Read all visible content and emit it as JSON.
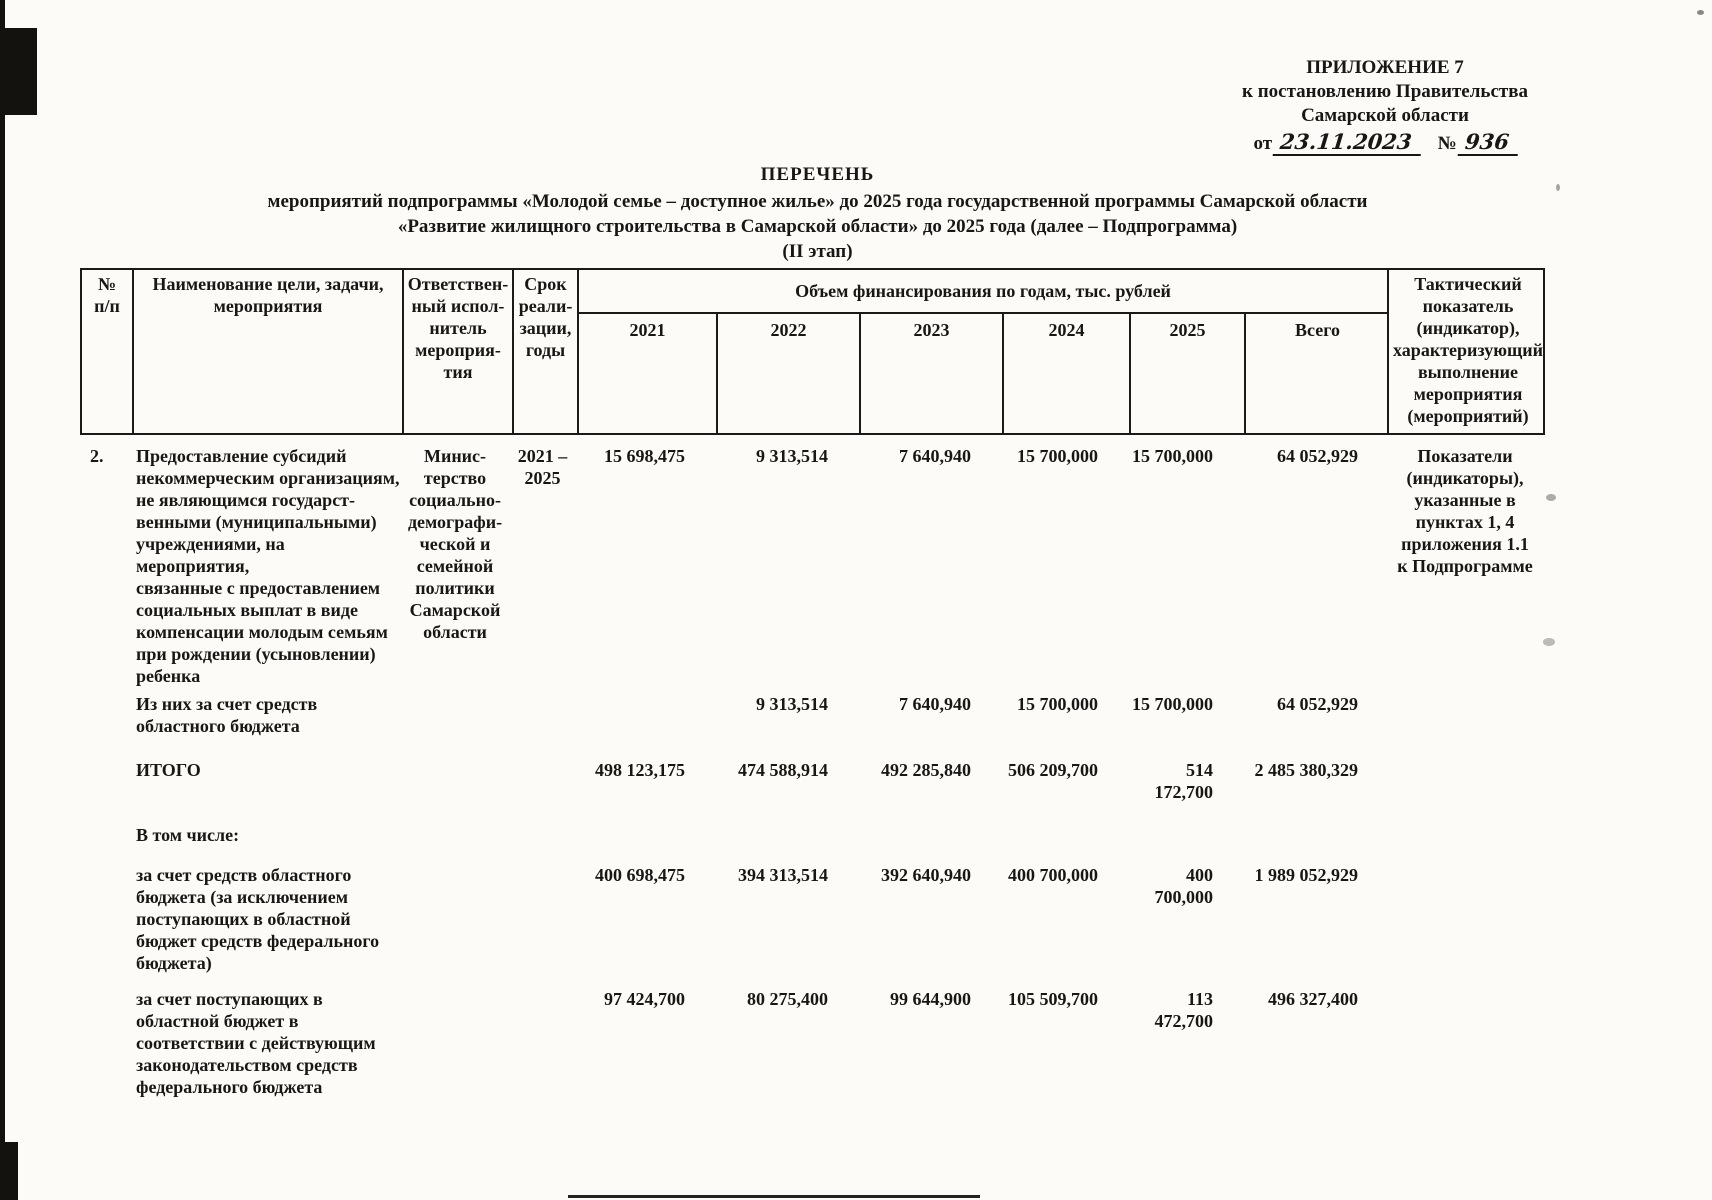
{
  "colors": {
    "paper": "#fcfbf7",
    "ink": "#181715"
  },
  "stamp": {
    "line1": "ПРИЛОЖЕНИЕ 7",
    "line2": "к постановлению Правительства",
    "line3": "Самарской области",
    "from_label": "от",
    "date": "23.11.2023",
    "number_label": "№",
    "number": "936"
  },
  "title": {
    "line1": "ПЕРЕЧЕНЬ",
    "line2": "мероприятий подпрограммы «Молодой семье – доступное жилье» до 2025 года государственной программы Самарской области",
    "line3": "«Развитие жилищного строительства в Самарской области» до 2025 года (далее – Подпрограмма)",
    "line4": "(II этап)"
  },
  "table": {
    "header": {
      "num": "№\nп/п",
      "name": "Наименование цели, задачи,\nмероприятия",
      "executor": "Ответствен-\nный испол-\nнитель\nмероприя-\nтия",
      "term": "Срок\nреали-\nзации,\nгоды",
      "financing_title": "Объем финансирования по годам, тыс. рублей",
      "years": [
        "2021",
        "2022",
        "2023",
        "2024",
        "2025",
        "Всего"
      ],
      "indicator": "Тактический\nпоказатель\n(индикатор),\nхарактеризующий\nвыполнение\nмероприятия\n(мероприятий)"
    },
    "rows": [
      {
        "num": "2.",
        "name": "Предоставление субсидий\nнекоммерческим организациям,\nне являющимся государст-\nвенными (муниципальными)\nучреждениями, на мероприятия,\nсвязанные с предоставлением\nсоциальных выплат в виде\nкомпенсации молодым семьям\nпри рождении (усыновлении)\nребенка",
        "executor": "Минис-\nтерство\nсоциально-\nдемографи-\nческой и\nсемейной\nполитики\nСамарской\nобласти",
        "term": "2021 –\n2025",
        "values": [
          "15 698,475",
          "9 313,514",
          "7 640,940",
          "15 700,000",
          "15 700,000",
          "64 052,929"
        ],
        "indicator": "Показатели\n(индикаторы),\nуказанные в\nпунктах 1, 4\nприложения 1.1\nк Подпрограмме"
      },
      {
        "name": "Из них за счет средств\nобластного бюджета",
        "values": [
          "",
          "9 313,514",
          "7 640,940",
          "15 700,000",
          "15 700,000",
          "64 052,929"
        ]
      },
      {
        "name": "ИТОГО",
        "values": [
          "498 123,175",
          "474 588,914",
          "492 285,840",
          "506 209,700",
          "514 172,700",
          "2 485 380,329"
        ]
      },
      {
        "name": "В том числе:",
        "values": [
          "",
          "",
          "",
          "",
          "",
          ""
        ]
      },
      {
        "name": "за счет средств областного\nбюджета (за исключением\nпоступающих в областной\nбюджет средств федерального\nбюджета)",
        "values": [
          "400 698,475",
          "394 313,514",
          "392 640,940",
          "400 700,000",
          "400 700,000",
          "1 989 052,929"
        ]
      },
      {
        "name": "за счет поступающих в\nобластной бюджет в\nсоответствии с действующим\nзаконодательством средств\nфедерального бюджета",
        "values": [
          "97 424,700",
          "80 275,400",
          "99 644,900",
          "105 509,700",
          "113 472,700",
          "496 327,400"
        ]
      }
    ]
  }
}
